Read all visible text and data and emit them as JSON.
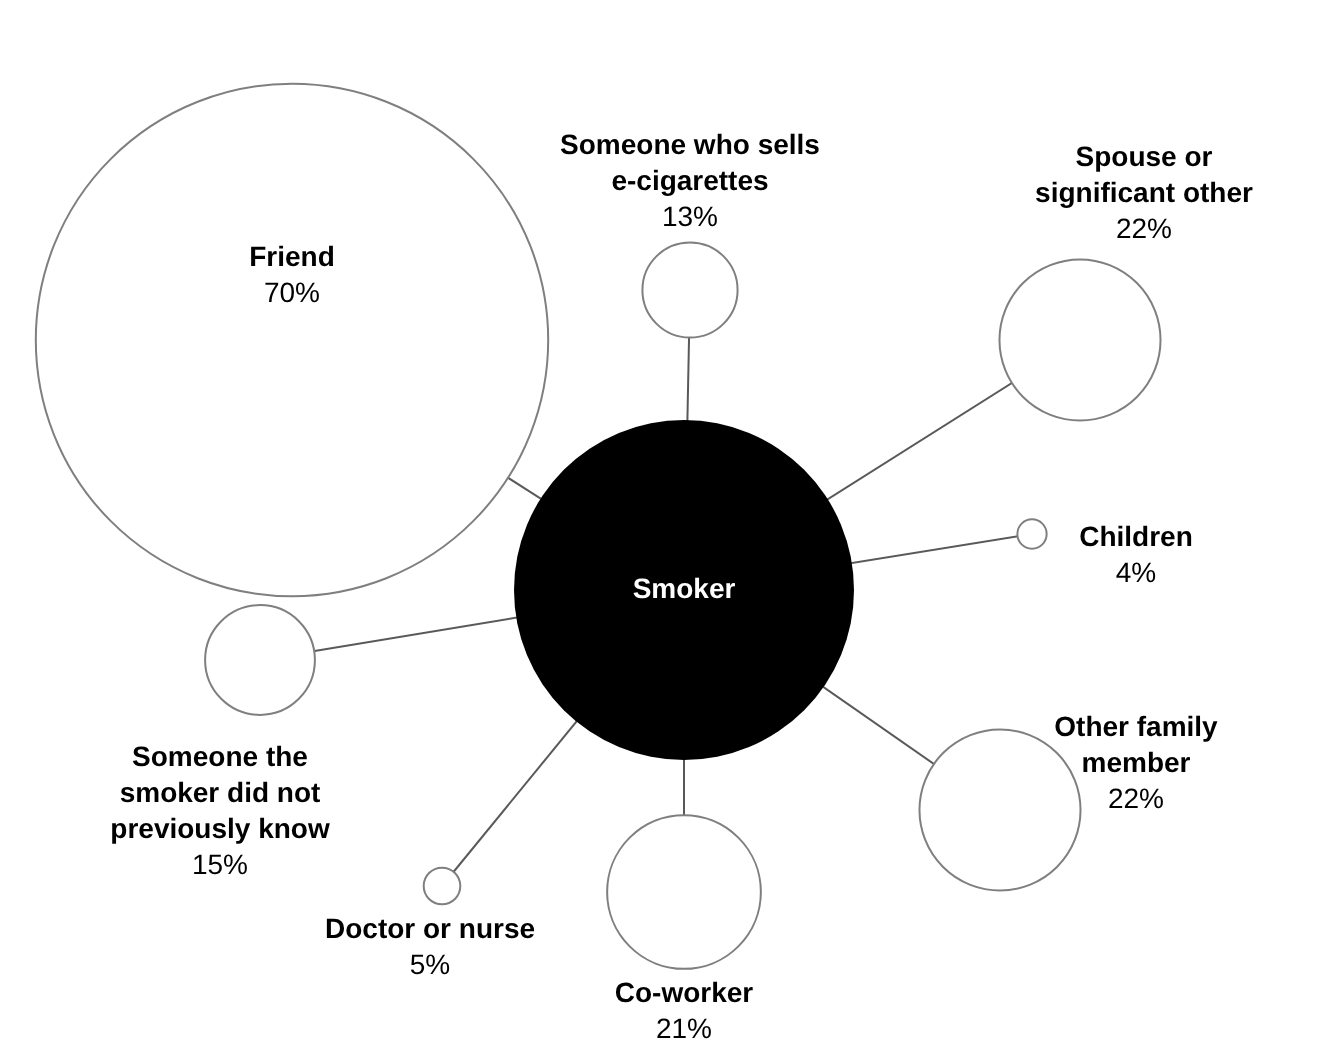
{
  "chart_data": {
    "type": "other",
    "categories": [
      "Friend",
      "Someone who sells e-cigarettes",
      "Spouse or significant other",
      "Children",
      "Other family member",
      "Co-worker",
      "Doctor or nurse",
      "Someone the smoker did not previously know"
    ],
    "values": [
      70,
      13,
      22,
      4,
      22,
      21,
      5,
      15
    ],
    "value_labels": [
      "70%",
      "13%",
      "22%",
      "4%",
      "22%",
      "21%",
      "5%",
      "15%"
    ],
    "annotations": [
      "Smoker"
    ]
  }
}
